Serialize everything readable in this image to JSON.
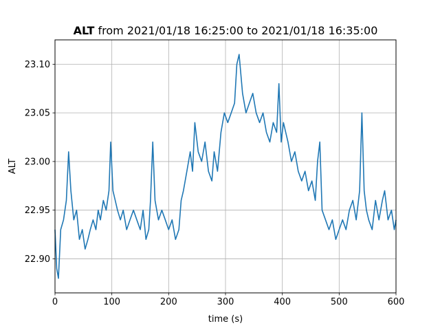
{
  "chart_data": {
    "type": "line",
    "title": {
      "bold": "ALT",
      "rest": " from 2021/01/18 16:25:00 to 2021/01/18 16:35:00"
    },
    "xlabel": "time (s)",
    "ylabel": "ALT",
    "xlim": [
      0,
      600
    ],
    "ylim": [
      22.865,
      23.125
    ],
    "xticks": [
      0,
      100,
      200,
      300,
      400,
      500,
      600
    ],
    "xtick_labels": [
      "0",
      "100",
      "200",
      "300",
      "400",
      "500",
      "600"
    ],
    "yticks": [
      22.9,
      22.95,
      23.0,
      23.05,
      23.1
    ],
    "ytick_labels": [
      "22.90",
      "22.95",
      "23.00",
      "23.05",
      "23.10"
    ],
    "grid": true,
    "line_color": "#1f77b4",
    "series": [
      {
        "x": [
          0,
          3,
          6,
          10,
          15,
          20,
          24,
          28,
          33,
          38,
          43,
          48,
          53,
          58,
          62,
          67,
          72,
          76,
          80,
          85,
          90,
          95,
          98,
          102,
          106,
          110,
          115,
          120,
          126,
          132,
          138,
          144,
          150,
          155,
          160,
          165,
          168,
          172,
          176,
          182,
          188,
          194,
          200,
          206,
          212,
          218,
          222,
          226,
          232,
          238,
          242,
          246,
          252,
          258,
          264,
          270,
          276,
          280,
          286,
          292,
          298,
          304,
          310,
          316,
          320,
          324,
          330,
          336,
          342,
          348,
          354,
          360,
          366,
          372,
          378,
          384,
          390,
          394,
          398,
          402,
          406,
          410,
          416,
          422,
          428,
          434,
          440,
          446,
          452,
          458,
          462,
          466,
          470,
          476,
          482,
          488,
          494,
          500,
          506,
          512,
          518,
          524,
          530,
          536,
          540,
          544,
          548,
          552,
          558,
          564,
          570,
          576,
          580,
          586,
          592,
          597,
          600
        ],
        "y": [
          22.93,
          22.89,
          22.88,
          22.93,
          22.94,
          22.96,
          23.01,
          22.97,
          22.94,
          22.95,
          22.92,
          22.93,
          22.91,
          22.92,
          22.93,
          22.94,
          22.93,
          22.95,
          22.94,
          22.96,
          22.95,
          22.97,
          23.02,
          22.97,
          22.96,
          22.95,
          22.94,
          22.95,
          22.93,
          22.94,
          22.95,
          22.94,
          22.93,
          22.95,
          22.92,
          22.93,
          22.96,
          23.02,
          22.96,
          22.94,
          22.95,
          22.94,
          22.93,
          22.94,
          22.92,
          22.93,
          22.96,
          22.97,
          22.99,
          23.01,
          22.99,
          23.04,
          23.01,
          23.0,
          23.02,
          22.99,
          22.98,
          23.01,
          22.99,
          23.03,
          23.05,
          23.04,
          23.05,
          23.06,
          23.1,
          23.11,
          23.07,
          23.05,
          23.06,
          23.07,
          23.05,
          23.04,
          23.05,
          23.03,
          23.02,
          23.04,
          23.03,
          23.08,
          23.02,
          23.04,
          23.03,
          23.02,
          23.0,
          23.01,
          22.99,
          22.98,
          22.99,
          22.97,
          22.98,
          22.96,
          23.0,
          23.02,
          22.95,
          22.94,
          22.93,
          22.94,
          22.92,
          22.93,
          22.94,
          22.93,
          22.95,
          22.96,
          22.94,
          22.97,
          23.05,
          22.97,
          22.95,
          22.94,
          22.93,
          22.96,
          22.94,
          22.96,
          22.97,
          22.94,
          22.95,
          22.93,
          22.94
        ]
      }
    ]
  }
}
